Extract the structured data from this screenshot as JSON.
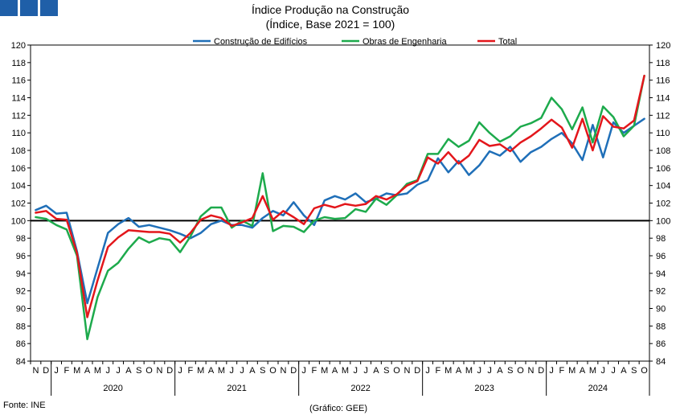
{
  "source_label": "Fonte: INE",
  "credit_label": "(Gráfico: GEE)",
  "chart_data": {
    "type": "line",
    "title": "Índice Produção na Construção",
    "subtitle": "(Índice, Base 2021 = 100)",
    "ylim": [
      84,
      120
    ],
    "ytick_step": 2,
    "reference_line": 100,
    "month_labels": [
      "N",
      "D",
      "J",
      "F",
      "M",
      "A",
      "M",
      "J",
      "J",
      "A",
      "S",
      "O",
      "N",
      "D",
      "J",
      "F",
      "M",
      "A",
      "M",
      "J",
      "J",
      "A",
      "S",
      "O",
      "N",
      "D",
      "J",
      "F",
      "M",
      "A",
      "M",
      "J",
      "J",
      "A",
      "S",
      "O",
      "N",
      "D",
      "J",
      "F",
      "M",
      "A",
      "M",
      "J",
      "J",
      "A",
      "S",
      "O",
      "N",
      "D",
      "J",
      "F",
      "M",
      "A",
      "M",
      "J",
      "J",
      "A",
      "S",
      "O"
    ],
    "year_groups": [
      {
        "label": "2020",
        "start": 2,
        "end": 13
      },
      {
        "label": "2021",
        "start": 14,
        "end": 25
      },
      {
        "label": "2022",
        "start": 26,
        "end": 37
      },
      {
        "label": "2023",
        "start": 38,
        "end": 49
      },
      {
        "label": "2024",
        "start": 50,
        "end": 59
      }
    ],
    "legend_position": "top-center",
    "series": [
      {
        "name": "Construção de Edifícios",
        "color": "#1f6fb8",
        "values": [
          101.2,
          101.7,
          100.8,
          100.9,
          96.5,
          90.6,
          94.6,
          98.6,
          99.6,
          100.3,
          99.3,
          99.5,
          99.2,
          98.9,
          98.5,
          98.0,
          98.6,
          99.6,
          100.0,
          99.5,
          99.5,
          99.2,
          100.3,
          101.1,
          100.6,
          102.1,
          100.6,
          99.5,
          102.3,
          102.8,
          102.4,
          103.1,
          102.1,
          102.5,
          103.1,
          102.9,
          103.1,
          104.1,
          104.6,
          107.1,
          105.5,
          106.8,
          105.2,
          106.3,
          107.9,
          107.4,
          108.4,
          106.7,
          107.8,
          108.4,
          109.3,
          110.0,
          108.8,
          106.9,
          110.9,
          107.2,
          111.2,
          110.0,
          110.8,
          111.6
        ]
      },
      {
        "name": "Obras de Engenharia",
        "color": "#1daa4c",
        "values": [
          100.4,
          100.2,
          99.5,
          99.0,
          96.0,
          86.5,
          91.3,
          94.3,
          95.2,
          96.8,
          98.1,
          97.5,
          98.0,
          97.8,
          96.4,
          98.2,
          100.5,
          101.5,
          101.5,
          99.2,
          100.0,
          99.4,
          105.4,
          98.8,
          99.4,
          99.3,
          98.7,
          100.0,
          100.4,
          100.2,
          100.3,
          101.3,
          101.0,
          102.5,
          101.8,
          102.9,
          104.2,
          104.6,
          107.6,
          107.6,
          109.3,
          108.4,
          109.1,
          111.2,
          110.0,
          109.0,
          109.6,
          110.7,
          111.1,
          111.7,
          114.0,
          112.7,
          110.4,
          112.9,
          108.9,
          113.0,
          111.8,
          109.6,
          110.8,
          116.5
        ]
      },
      {
        "name": "Total",
        "color": "#e3161b",
        "values": [
          100.9,
          101.1,
          100.2,
          100.1,
          96.3,
          89.0,
          93.2,
          97.0,
          98.1,
          98.9,
          98.8,
          98.7,
          98.7,
          98.5,
          97.5,
          98.6,
          100.1,
          100.6,
          100.3,
          99.4,
          99.8,
          100.3,
          102.8,
          100.1,
          101.1,
          100.4,
          99.6,
          101.4,
          101.8,
          101.5,
          101.9,
          101.7,
          101.9,
          102.8,
          102.4,
          103.0,
          104.0,
          104.5,
          107.2,
          106.5,
          107.8,
          106.5,
          107.4,
          109.2,
          108.5,
          108.7,
          107.9,
          108.9,
          109.6,
          110.5,
          111.5,
          110.6,
          108.3,
          111.6,
          108.0,
          111.9,
          110.7,
          110.5,
          111.4,
          116.5
        ]
      }
    ]
  }
}
